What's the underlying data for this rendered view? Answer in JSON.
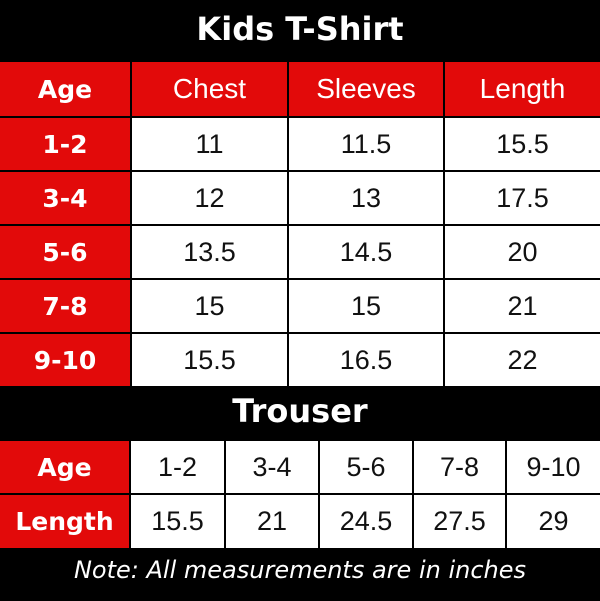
{
  "tshirt": {
    "title": "Kids T-Shirt",
    "headers": [
      "Age",
      "Chest",
      "Sleeves",
      "Length"
    ],
    "rows": [
      [
        "1-2",
        "11",
        "11.5",
        "15.5"
      ],
      [
        "3-4",
        "12",
        "13",
        "17.5"
      ],
      [
        "5-6",
        "13.5",
        "14.5",
        "20"
      ],
      [
        "7-8",
        "15",
        "15",
        "21"
      ],
      [
        "9-10",
        "15.5",
        "16.5",
        "22"
      ]
    ]
  },
  "trouser": {
    "title": "Trouser",
    "rows": [
      [
        "Age",
        "1-2",
        "3-4",
        "5-6",
        "7-8",
        "9-10"
      ],
      [
        "Length",
        "15.5",
        "21",
        "24.5",
        "27.5",
        "29"
      ]
    ]
  },
  "note": "Note: All measurements are in inches",
  "colors": {
    "accent": "#e20a0a",
    "background": "#000000",
    "cell": "#ffffff"
  }
}
